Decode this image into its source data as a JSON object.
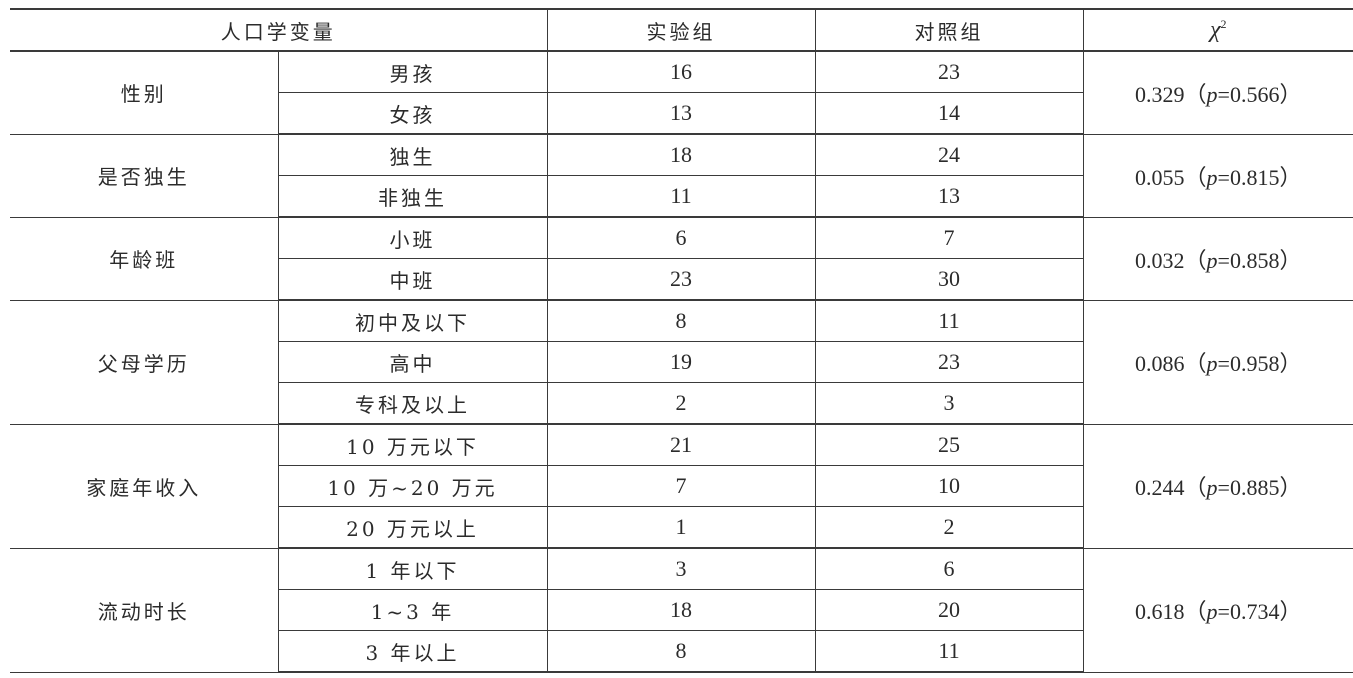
{
  "header": {
    "variable": "人口学变量",
    "experimental": "实验组",
    "control": "对照组",
    "chi_symbol": "χ",
    "chi_sup": "2",
    "p_label": "p"
  },
  "groups": [
    {
      "name": "性别",
      "chi2": "0.329",
      "p": "0.566",
      "rows": [
        {
          "level": "男孩",
          "exp": "16",
          "ctrl": "23"
        },
        {
          "level": "女孩",
          "exp": "13",
          "ctrl": "14"
        }
      ]
    },
    {
      "name": "是否独生",
      "chi2": "0.055",
      "p": "0.815",
      "rows": [
        {
          "level": "独生",
          "exp": "18",
          "ctrl": "24"
        },
        {
          "level": "非独生",
          "exp": "11",
          "ctrl": "13"
        }
      ]
    },
    {
      "name": "年龄班",
      "chi2": "0.032",
      "p": "0.858",
      "rows": [
        {
          "level": "小班",
          "exp": "6",
          "ctrl": "7"
        },
        {
          "level": "中班",
          "exp": "23",
          "ctrl": "30"
        }
      ]
    },
    {
      "name": "父母学历",
      "chi2": "0.086",
      "p": "0.958",
      "rows": [
        {
          "level": "初中及以下",
          "exp": "8",
          "ctrl": "11"
        },
        {
          "level": "高中",
          "exp": "19",
          "ctrl": "23"
        },
        {
          "level": "专科及以上",
          "exp": "2",
          "ctrl": "3"
        }
      ]
    },
    {
      "name": "家庭年收入",
      "chi2": "0.244",
      "p": "0.885",
      "rows": [
        {
          "level": "10 万元以下",
          "exp": "21",
          "ctrl": "25"
        },
        {
          "level": "10 万~20 万元",
          "exp": "7",
          "ctrl": "10"
        },
        {
          "level": "20 万元以上",
          "exp": "1",
          "ctrl": "2"
        }
      ]
    },
    {
      "name": "流动时长",
      "chi2": "0.618",
      "p": "0.734",
      "rows": [
        {
          "level": "1 年以下",
          "exp": "3",
          "ctrl": "6"
        },
        {
          "level": "1~3 年",
          "exp": "18",
          "ctrl": "20"
        },
        {
          "level": "3 年以上",
          "exp": "8",
          "ctrl": "11"
        }
      ]
    }
  ]
}
